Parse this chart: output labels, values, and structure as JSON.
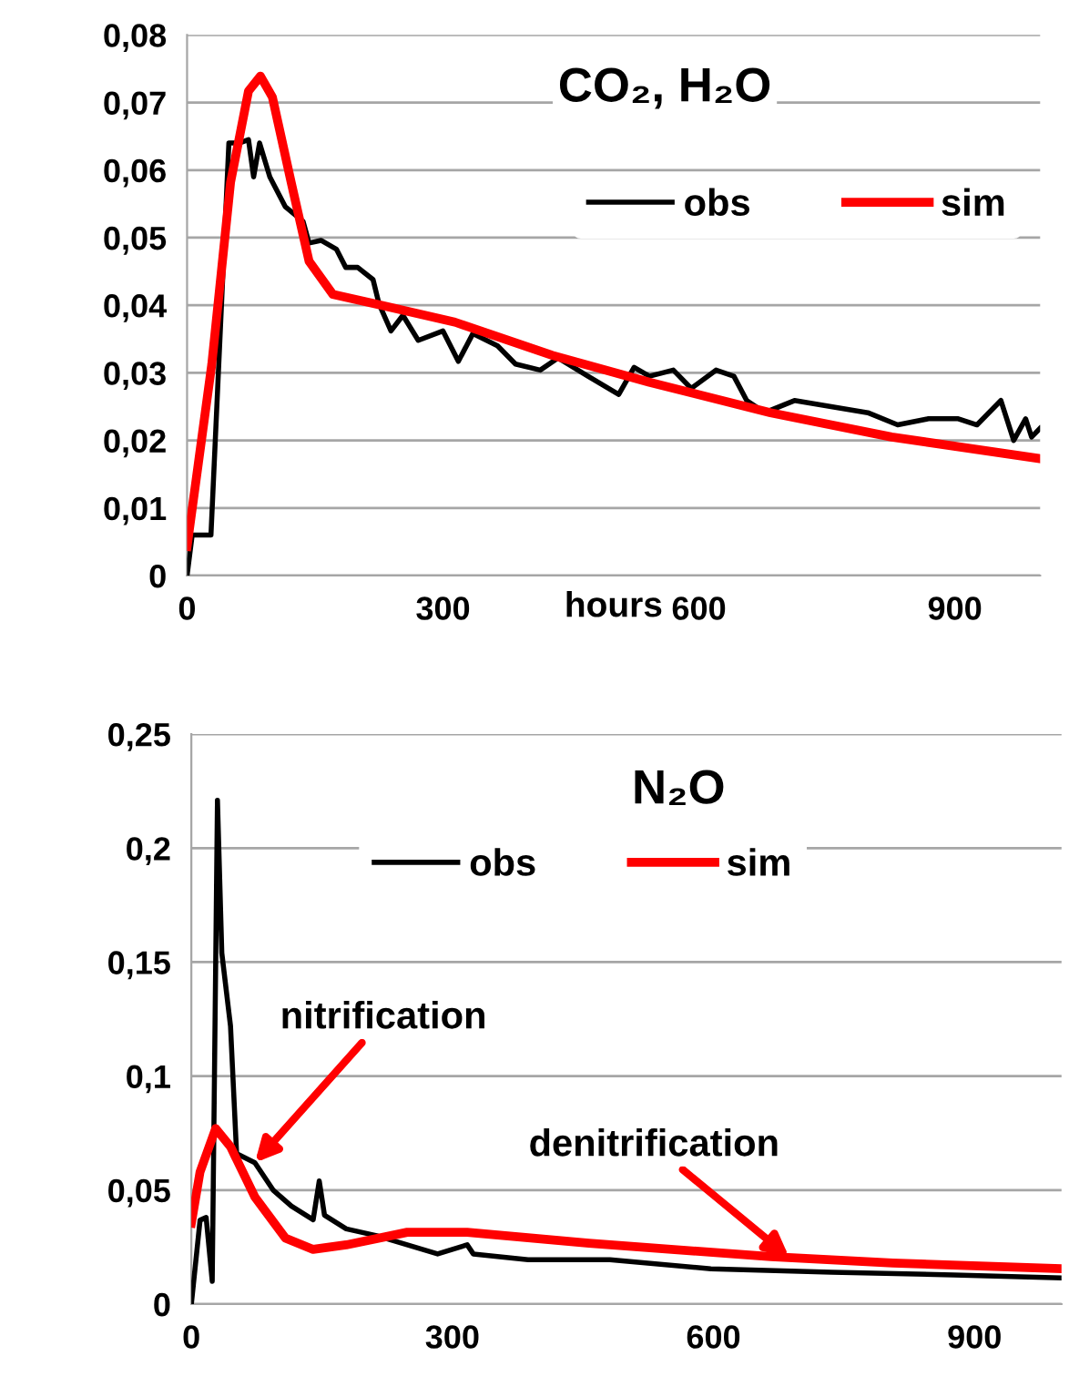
{
  "chart_data": [
    {
      "type": "line",
      "title": "CO₂, H₂O",
      "xlabel": "hours",
      "xlim": [
        0,
        1000
      ],
      "xticks": [
        0,
        300,
        600,
        900
      ],
      "ylim": [
        0,
        0.08
      ],
      "yticks": [
        {
          "value": 0,
          "label": "0"
        },
        {
          "value": 0.01,
          "label": "0,01"
        },
        {
          "value": 0.02,
          "label": "0,02"
        },
        {
          "value": 0.03,
          "label": "0,03"
        },
        {
          "value": 0.04,
          "label": "0,04"
        },
        {
          "value": 0.05,
          "label": "0,05"
        },
        {
          "value": 0.06,
          "label": "0,06"
        },
        {
          "value": 0.07,
          "label": "0,07"
        },
        {
          "value": 0.08,
          "label": "0,08"
        }
      ],
      "grid": "y",
      "legend": "top right",
      "marker": "none",
      "line_style": "solid",
      "series": [
        {
          "name": "obs",
          "color": "#000000",
          "x": [
            0,
            6,
            28,
            49,
            61,
            72,
            78,
            85,
            97,
            115,
            136,
            143,
            157,
            175,
            186,
            200,
            218,
            225,
            239,
            253,
            271,
            300,
            318,
            335,
            364,
            385,
            414,
            435,
            470,
            506,
            524,
            542,
            570,
            591,
            620,
            641,
            656,
            677,
            712,
            755,
            798,
            833,
            869,
            904,
            926,
            954,
            969,
            983,
            990,
            1000
          ],
          "values": [
            0,
            0.006,
            0.006,
            0.064,
            0.064,
            0.0645,
            0.059,
            0.064,
            0.059,
            0.0546,
            0.0524,
            0.0492,
            0.0496,
            0.0483,
            0.0456,
            0.0456,
            0.0438,
            0.0402,
            0.0362,
            0.0385,
            0.0348,
            0.0362,
            0.0317,
            0.0358,
            0.034,
            0.0313,
            0.0304,
            0.0322,
            0.0295,
            0.0268,
            0.0308,
            0.0295,
            0.0304,
            0.0277,
            0.0304,
            0.0295,
            0.0259,
            0.0241,
            0.0259,
            0.025,
            0.0241,
            0.0223,
            0.0232,
            0.0232,
            0.0223,
            0.0259,
            0.02,
            0.0232,
            0.0205,
            0.0218
          ]
        },
        {
          "name": "sim",
          "color": "#ff0000",
          "x": [
            0,
            29,
            51,
            72,
            86,
            100,
            122,
            143,
            171,
            221,
            314,
            428,
            542,
            684,
            826,
            1000
          ],
          "values": [
            0.0043,
            0.0313,
            0.0582,
            0.0717,
            0.0739,
            0.0708,
            0.0582,
            0.0465,
            0.0416,
            0.0402,
            0.0375,
            0.0326,
            0.0286,
            0.0241,
            0.0205,
            0.0173
          ]
        }
      ]
    },
    {
      "type": "line",
      "title": "N₂O",
      "xlim": [
        0,
        1000
      ],
      "xticks": [
        0,
        300,
        600,
        900
      ],
      "ylim": [
        0,
        0.25
      ],
      "yticks": [
        {
          "value": 0,
          "label": "0"
        },
        {
          "value": 0.05,
          "label": "0,05"
        },
        {
          "value": 0.1,
          "label": "0,1"
        },
        {
          "value": 0.15,
          "label": "0,15"
        },
        {
          "value": 0.2,
          "label": "0,2"
        },
        {
          "value": 0.25,
          "label": "0,25"
        }
      ],
      "grid": "y",
      "legend": "top",
      "marker": "none",
      "line_style": "solid",
      "annotations": [
        {
          "text": "nitrification",
          "x": 73,
          "y": 0.062
        },
        {
          "text": "denitrification",
          "x": 687,
          "y": 0.0205
        }
      ],
      "series": [
        {
          "name": "obs",
          "color": "#000000",
          "x": [
            0,
            10,
            17,
            24,
            30,
            35,
            45,
            52,
            73,
            94,
            115,
            140,
            147,
            153,
            178,
            213,
            248,
            283,
            317,
            324,
            387,
            481,
            597,
            736,
            876,
            1000
          ],
          "values": [
            0,
            0.0368,
            0.038,
            0.01,
            0.221,
            0.154,
            0.122,
            0.066,
            0.062,
            0.05,
            0.043,
            0.037,
            0.054,
            0.039,
            0.033,
            0.03,
            0.026,
            0.022,
            0.026,
            0.022,
            0.0195,
            0.0195,
            0.0155,
            0.014,
            0.0128,
            0.0115
          ]
        },
        {
          "name": "sim",
          "color": "#ff0000",
          "x": [
            0,
            10,
            28,
            45,
            73,
            108,
            140,
            178,
            248,
            317,
            457,
            666,
            806,
            1000
          ],
          "values": [
            0.0355,
            0.058,
            0.077,
            0.069,
            0.047,
            0.029,
            0.024,
            0.026,
            0.0315,
            0.0315,
            0.0267,
            0.0208,
            0.018,
            0.0155
          ]
        }
      ]
    }
  ]
}
